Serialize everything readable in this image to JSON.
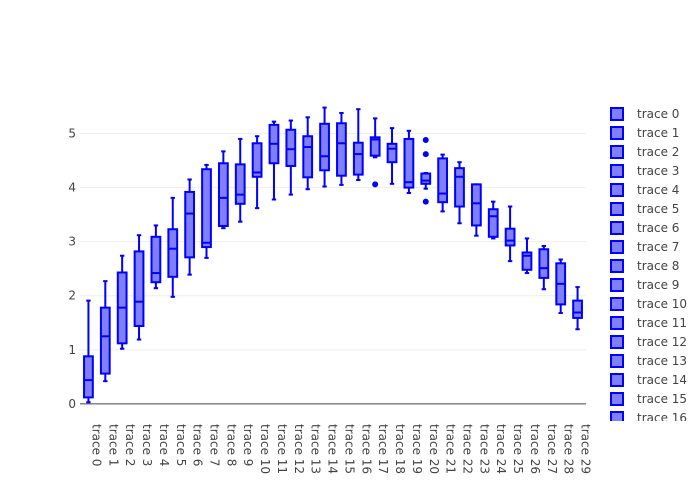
{
  "chart_data": {
    "type": "box",
    "title": "",
    "xlabel": "",
    "ylabel": "",
    "ylim": [
      -0.15,
      5.62
    ],
    "yticks": [
      0,
      1,
      2,
      3,
      4,
      5
    ],
    "grid": true,
    "legend_position": "right",
    "colors": {
      "line": "#0000ff",
      "fill": "#7f7fff",
      "grid": "#eeeeee",
      "zeroline": "#444444",
      "text": "#444444"
    },
    "categories": [
      "trace 0",
      "trace 1",
      "trace 2",
      "trace 3",
      "trace 4",
      "trace 5",
      "trace 6",
      "trace 7",
      "trace 8",
      "trace 9",
      "trace 10",
      "trace 11",
      "trace 12",
      "trace 13",
      "trace 14",
      "trace 15",
      "trace 16",
      "trace 17",
      "trace 18",
      "trace 19",
      "trace 20",
      "trace 21",
      "trace 22",
      "trace 23",
      "trace 24",
      "trace 25",
      "trace 26",
      "trace 27",
      "trace 28",
      "trace 29"
    ],
    "legend_items": [
      "trace 0",
      "trace 1",
      "trace 2",
      "trace 3",
      "trace 4",
      "trace 5",
      "trace 6",
      "trace 7",
      "trace 8",
      "trace 9",
      "trace 10",
      "trace 11",
      "trace 12",
      "trace 13",
      "trace 14",
      "trace 15",
      "trace 16"
    ],
    "boxes": [
      {
        "name": "trace 0",
        "lower": 0.03,
        "q1": 0.12,
        "median": 0.44,
        "q3": 0.88,
        "upper": 1.91,
        "outliers": []
      },
      {
        "name": "trace 1",
        "lower": 0.42,
        "q1": 0.56,
        "median": 1.25,
        "q3": 1.78,
        "upper": 2.27,
        "outliers": []
      },
      {
        "name": "trace 2",
        "lower": 1.02,
        "q1": 1.12,
        "median": 1.78,
        "q3": 2.43,
        "upper": 2.74,
        "outliers": []
      },
      {
        "name": "trace 3",
        "lower": 1.19,
        "q1": 1.44,
        "median": 1.89,
        "q3": 2.82,
        "upper": 3.12,
        "outliers": []
      },
      {
        "name": "trace 4",
        "lower": 2.14,
        "q1": 2.25,
        "median": 2.42,
        "q3": 3.09,
        "upper": 3.3,
        "outliers": []
      },
      {
        "name": "trace 5",
        "lower": 1.98,
        "q1": 2.35,
        "median": 2.87,
        "q3": 3.23,
        "upper": 3.81,
        "outliers": []
      },
      {
        "name": "trace 6",
        "lower": 2.39,
        "q1": 2.71,
        "median": 3.52,
        "q3": 3.92,
        "upper": 4.15,
        "outliers": []
      },
      {
        "name": "trace 7",
        "lower": 2.7,
        "q1": 2.9,
        "median": 2.98,
        "q3": 4.34,
        "upper": 4.42,
        "outliers": []
      },
      {
        "name": "trace 8",
        "lower": 3.25,
        "q1": 3.29,
        "median": 3.81,
        "q3": 4.45,
        "upper": 4.67,
        "outliers": []
      },
      {
        "name": "trace 9",
        "lower": 3.37,
        "q1": 3.7,
        "median": 3.87,
        "q3": 4.43,
        "upper": 4.9,
        "outliers": []
      },
      {
        "name": "trace 10",
        "lower": 3.62,
        "q1": 4.2,
        "median": 4.28,
        "q3": 4.82,
        "upper": 4.95,
        "outliers": []
      },
      {
        "name": "trace 11",
        "lower": 3.78,
        "q1": 4.45,
        "median": 4.81,
        "q3": 5.16,
        "upper": 5.22,
        "outliers": []
      },
      {
        "name": "trace 12",
        "lower": 3.87,
        "q1": 4.4,
        "median": 4.71,
        "q3": 5.07,
        "upper": 5.24,
        "outliers": []
      },
      {
        "name": "trace 13",
        "lower": 3.97,
        "q1": 4.19,
        "median": 4.75,
        "q3": 4.95,
        "upper": 5.3,
        "outliers": []
      },
      {
        "name": "trace 14",
        "lower": 4.02,
        "q1": 4.32,
        "median": 4.58,
        "q3": 5.18,
        "upper": 5.48,
        "outliers": []
      },
      {
        "name": "trace 15",
        "lower": 4.05,
        "q1": 4.22,
        "median": 4.82,
        "q3": 5.19,
        "upper": 5.38,
        "outliers": []
      },
      {
        "name": "trace 16",
        "lower": 4.14,
        "q1": 4.24,
        "median": 4.62,
        "q3": 4.83,
        "upper": 5.45,
        "outliers": []
      },
      {
        "name": "trace 17",
        "lower": 4.56,
        "q1": 4.59,
        "median": 4.89,
        "q3": 4.93,
        "upper": 5.28,
        "outliers": [
          4.06
        ]
      },
      {
        "name": "trace 18",
        "lower": 4.07,
        "q1": 4.47,
        "median": 4.72,
        "q3": 4.81,
        "upper": 5.1,
        "outliers": []
      },
      {
        "name": "trace 19",
        "lower": 3.9,
        "q1": 4.0,
        "median": 4.1,
        "q3": 4.9,
        "upper": 5.05,
        "outliers": []
      },
      {
        "name": "trace 20",
        "lower": 3.98,
        "q1": 4.07,
        "median": 4.13,
        "q3": 4.26,
        "upper": 4.27,
        "outliers": [
          4.88,
          4.62,
          3.74
        ]
      },
      {
        "name": "trace 21",
        "lower": 3.56,
        "q1": 3.73,
        "median": 3.89,
        "q3": 4.54,
        "upper": 4.61,
        "outliers": []
      },
      {
        "name": "trace 22",
        "lower": 3.34,
        "q1": 3.65,
        "median": 4.2,
        "q3": 4.36,
        "upper": 4.47,
        "outliers": []
      },
      {
        "name": "trace 23",
        "lower": 3.11,
        "q1": 3.3,
        "median": 3.71,
        "q3": 4.06,
        "upper": 4.06,
        "outliers": []
      },
      {
        "name": "trace 24",
        "lower": 3.06,
        "q1": 3.09,
        "median": 3.47,
        "q3": 3.6,
        "upper": 3.74,
        "outliers": []
      },
      {
        "name": "trace 25",
        "lower": 2.64,
        "q1": 2.93,
        "median": 3.02,
        "q3": 3.24,
        "upper": 3.65,
        "outliers": []
      },
      {
        "name": "trace 26",
        "lower": 2.42,
        "q1": 2.48,
        "median": 2.74,
        "q3": 2.8,
        "upper": 3.06,
        "outliers": []
      },
      {
        "name": "trace 27",
        "lower": 2.12,
        "q1": 2.33,
        "median": 2.51,
        "q3": 2.86,
        "upper": 2.92,
        "outliers": []
      },
      {
        "name": "trace 28",
        "lower": 1.68,
        "q1": 1.84,
        "median": 2.22,
        "q3": 2.6,
        "upper": 2.67,
        "outliers": []
      },
      {
        "name": "trace 29",
        "lower": 1.38,
        "q1": 1.59,
        "median": 1.69,
        "q3": 1.91,
        "upper": 2.16,
        "outliers": []
      }
    ]
  }
}
